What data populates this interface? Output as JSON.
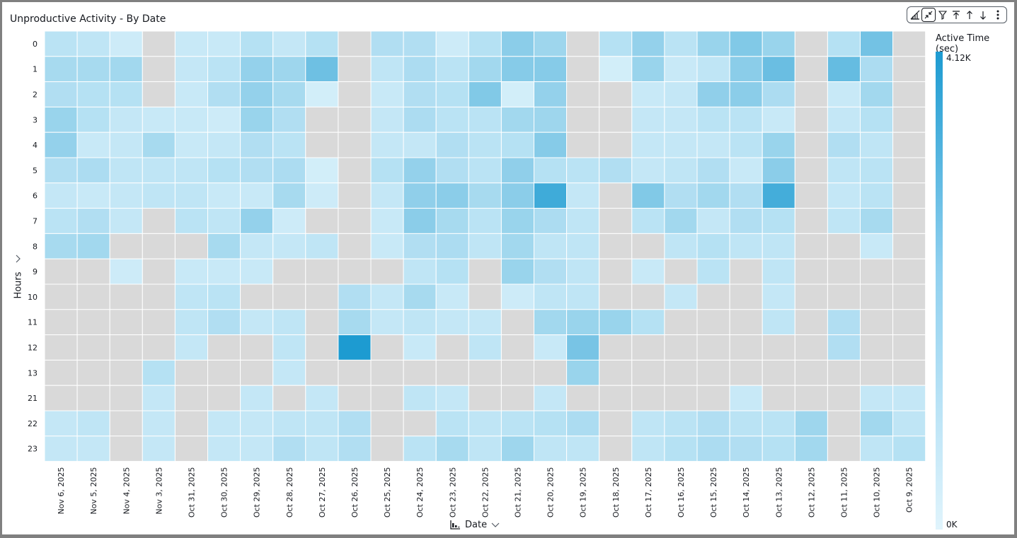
{
  "header": {
    "title": "Unproductive Activity - By Date"
  },
  "toolbar": {
    "icons": [
      "chart-type-icon",
      "collapse-icon",
      "filter-icon",
      "sort-top-icon",
      "sort-ascending-icon",
      "sort-descending-icon",
      "more-options-icon"
    ]
  },
  "colors": {
    "scale_max": "#1d9bd1",
    "scale_min": "#e0f4fc",
    "no_data": "#d9d9d9"
  },
  "chart_data": {
    "type": "heatmap",
    "title": "Unproductive Activity - By Date",
    "xlabel": "Date",
    "ylabel": "Hours",
    "legend": {
      "title": "Active Time (sec)",
      "max_label": "4.12K",
      "min_label": "0K",
      "max": 4120,
      "min": 0,
      "placement": "right"
    },
    "x": [
      "Nov 6, 2025",
      "Nov 5, 2025",
      "Nov 4, 2025",
      "Nov 3, 2025",
      "Oct 31, 2025",
      "Oct 30, 2025",
      "Oct 29, 2025",
      "Oct 28, 2025",
      "Oct 27, 2025",
      "Oct 26, 2025",
      "Oct 25, 2025",
      "Oct 24, 2025",
      "Oct 23, 2025",
      "Oct 22, 2025",
      "Oct 21, 2025",
      "Oct 20, 2025",
      "Oct 19, 2025",
      "Oct 18, 2025",
      "Oct 17, 2025",
      "Oct 16, 2025",
      "Oct 15, 2025",
      "Oct 14, 2025",
      "Oct 13, 2025",
      "Oct 12, 2025",
      "Oct 11, 2025",
      "Oct 10, 2025",
      "Oct 9, 2025"
    ],
    "y": [
      "0",
      "1",
      "2",
      "3",
      "4",
      "5",
      "6",
      "7",
      "8",
      "9",
      "10",
      "11",
      "12",
      "13",
      "21",
      "22",
      "23"
    ],
    "values": [
      [
        800,
        700,
        400,
        null,
        500,
        500,
        900,
        600,
        900,
        null,
        1000,
        1000,
        400,
        900,
        1800,
        1400,
        null,
        900,
        1600,
        800,
        1500,
        2000,
        1500,
        null,
        900,
        2300,
        null
      ],
      [
        1200,
        1200,
        1300,
        null,
        600,
        800,
        1600,
        1400,
        2400,
        null,
        700,
        1100,
        800,
        1300,
        1900,
        1900,
        null,
        300,
        1500,
        500,
        700,
        1800,
        2500,
        null,
        2600,
        1100,
        null
      ],
      [
        1000,
        900,
        900,
        null,
        500,
        1000,
        1600,
        1200,
        300,
        null,
        500,
        1000,
        900,
        2000,
        300,
        1600,
        null,
        null,
        500,
        600,
        1700,
        1800,
        1100,
        null,
        500,
        1300,
        null
      ],
      [
        1500,
        900,
        600,
        500,
        500,
        400,
        1500,
        1000,
        null,
        null,
        600,
        1100,
        800,
        800,
        1300,
        1400,
        null,
        null,
        600,
        600,
        800,
        800,
        500,
        null,
        600,
        900,
        null
      ],
      [
        1600,
        500,
        600,
        1200,
        500,
        600,
        1000,
        800,
        null,
        null,
        600,
        600,
        1000,
        800,
        900,
        1900,
        null,
        null,
        600,
        600,
        600,
        800,
        1500,
        null,
        1000,
        700,
        null
      ],
      [
        1000,
        1100,
        700,
        700,
        700,
        900,
        1000,
        1100,
        300,
        null,
        900,
        1600,
        1000,
        800,
        1700,
        900,
        800,
        1000,
        600,
        700,
        1000,
        500,
        1800,
        null,
        700,
        800,
        null
      ],
      [
        600,
        500,
        600,
        700,
        700,
        500,
        500,
        1200,
        400,
        null,
        600,
        1700,
        1800,
        1200,
        1800,
        3400,
        600,
        null,
        2000,
        1000,
        1300,
        1000,
        3300,
        null,
        600,
        800,
        null
      ],
      [
        800,
        1000,
        600,
        null,
        800,
        700,
        1600,
        400,
        null,
        null,
        500,
        1800,
        1200,
        800,
        1500,
        1100,
        700,
        null,
        800,
        1300,
        600,
        1000,
        900,
        null,
        700,
        1200,
        null
      ],
      [
        1200,
        1300,
        null,
        null,
        null,
        1200,
        600,
        600,
        700,
        null,
        500,
        1000,
        1100,
        700,
        1300,
        700,
        700,
        null,
        null,
        700,
        900,
        700,
        700,
        null,
        null,
        500,
        null
      ],
      [
        null,
        null,
        400,
        null,
        500,
        500,
        500,
        null,
        null,
        null,
        null,
        700,
        900,
        null,
        1500,
        1000,
        700,
        null,
        500,
        null,
        800,
        null,
        700,
        null,
        null,
        null,
        null
      ],
      [
        null,
        null,
        null,
        null,
        700,
        800,
        null,
        null,
        null,
        1000,
        600,
        1200,
        500,
        null,
        400,
        700,
        700,
        null,
        null,
        600,
        null,
        null,
        600,
        null,
        null,
        null,
        null
      ],
      [
        null,
        null,
        null,
        null,
        700,
        1000,
        600,
        700,
        null,
        1200,
        600,
        700,
        600,
        600,
        null,
        1300,
        1500,
        1500,
        900,
        null,
        null,
        null,
        700,
        null,
        1000,
        null,
        null
      ],
      [
        null,
        null,
        null,
        null,
        600,
        null,
        null,
        700,
        null,
        4120,
        null,
        500,
        null,
        700,
        null,
        500,
        2200,
        null,
        null,
        null,
        null,
        null,
        null,
        null,
        1000,
        null,
        null
      ],
      [
        null,
        null,
        null,
        900,
        null,
        null,
        null,
        600,
        null,
        null,
        null,
        null,
        null,
        null,
        null,
        null,
        1500,
        null,
        null,
        null,
        null,
        null,
        null,
        null,
        null,
        null,
        null
      ],
      [
        null,
        null,
        null,
        600,
        null,
        null,
        600,
        null,
        600,
        null,
        null,
        700,
        600,
        null,
        null,
        600,
        null,
        null,
        null,
        null,
        null,
        500,
        null,
        null,
        null,
        600,
        600
      ],
      [
        600,
        700,
        null,
        600,
        null,
        600,
        600,
        700,
        700,
        1000,
        null,
        null,
        800,
        700,
        800,
        900,
        1100,
        null,
        700,
        800,
        1000,
        800,
        800,
        1400,
        null,
        1300,
        700
      ],
      [
        600,
        600,
        null,
        600,
        null,
        600,
        600,
        1000,
        700,
        1000,
        null,
        800,
        1200,
        700,
        1400,
        700,
        700,
        null,
        700,
        900,
        1100,
        1000,
        900,
        1300,
        null,
        700,
        900
      ]
    ]
  }
}
